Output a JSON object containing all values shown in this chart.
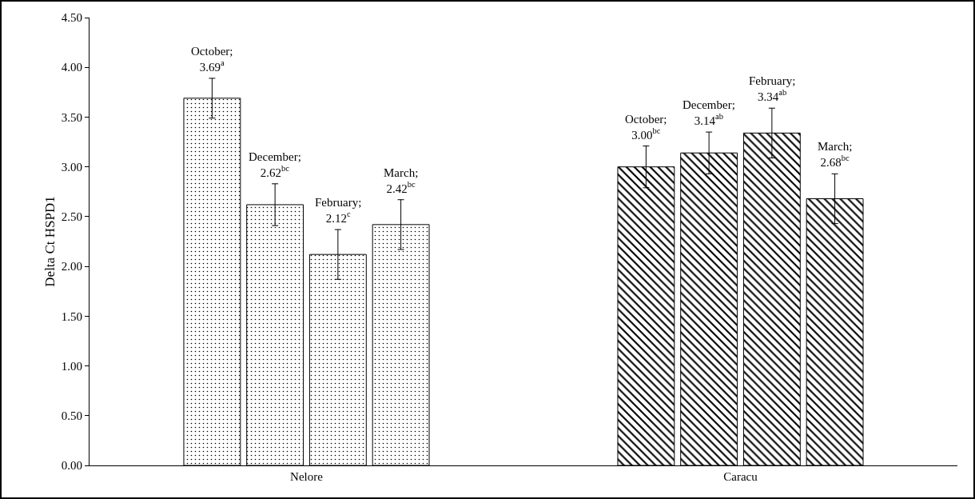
{
  "chart_data": {
    "type": "bar",
    "ylabel": "Delta Ct HSPD1",
    "categories": [
      "Nelore",
      "Caracu"
    ],
    "series": [
      {
        "color": "#000000",
        "values": [
          3.69,
          3.0
        ],
        "errors": [
          0.2,
          0.21
        ],
        "value_labels": [
          "October; 3.69$^{a}$",
          "October; 3.00$^{bc}$"
        ]
      },
      {
        "color": "#000000",
        "values": [
          2.62,
          3.14
        ],
        "errors": [
          0.21,
          0.21
        ],
        "value_labels": [
          "December; 2.62$^{bc}$",
          "December; 3.14$^{ab}$"
        ]
      },
      {
        "color": "#000000",
        "values": [
          2.12,
          3.34
        ],
        "errors": [
          0.25,
          0.25
        ],
        "value_labels": [
          "February; 2.12$^{c}$",
          "February; 3.34$^{ab}$"
        ]
      },
      {
        "color": "#000000",
        "values": [
          2.42,
          2.68
        ],
        "errors": [
          0.25,
          0.25
        ],
        "value_labels": [
          "March; 2.42$^{bc}$",
          "March; 2.68$^{bc}$"
        ]
      }
    ],
    "ylim": [
      0,
      4.5
    ],
    "yticks": [
      {
        "value": 0,
        "label": "0.00"
      },
      {
        "value": 0.5,
        "label": "0.50"
      },
      {
        "value": 1,
        "label": "1.00"
      },
      {
        "value": 1.5,
        "label": "1.50"
      },
      {
        "value": 2,
        "label": "2.00"
      },
      {
        "value": 2.5,
        "label": "2.50"
      },
      {
        "value": 3,
        "label": "3.00"
      },
      {
        "value": 3.5,
        "label": "3.50"
      },
      {
        "value": 4,
        "label": "4.00"
      },
      {
        "value": 4.5,
        "label": "4.50"
      }
    ],
    "grid": false,
    "legend": false
  }
}
